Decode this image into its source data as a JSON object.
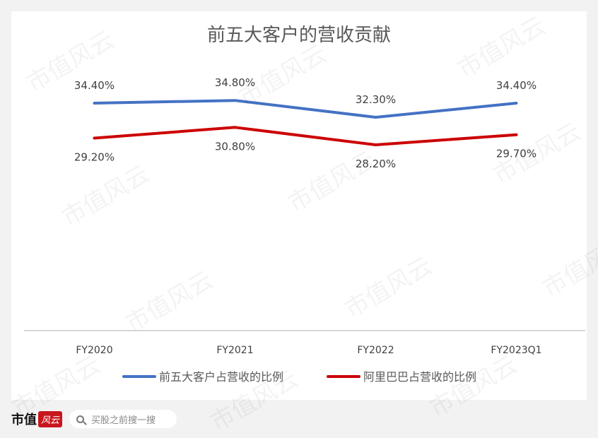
{
  "chart_data": {
    "type": "line",
    "title": "前五大客户的营收贡献",
    "categories": [
      "FY2020",
      "FY2021",
      "FY2022",
      "FY2023Q1"
    ],
    "series": [
      {
        "name": "前五大客户占营收的比例",
        "values": [
          34.4,
          34.8,
          32.3,
          34.4
        ],
        "labels": [
          "34.40%",
          "34.80%",
          "32.30%",
          "34.40%"
        ],
        "color": "#4472c4"
      },
      {
        "name": "阿里巴巴占营收的比例",
        "values": [
          29.2,
          30.8,
          28.2,
          29.7
        ],
        "labels": [
          "29.20%",
          "30.80%",
          "28.20%",
          "29.70%"
        ],
        "color": "#cc0000"
      }
    ],
    "grid": false,
    "legend": "bottom"
  },
  "footer": {
    "logo_text": "市值",
    "logo_seal": "风云",
    "search_placeholder": "买股之前搜一搜"
  },
  "watermark": "市值风云"
}
